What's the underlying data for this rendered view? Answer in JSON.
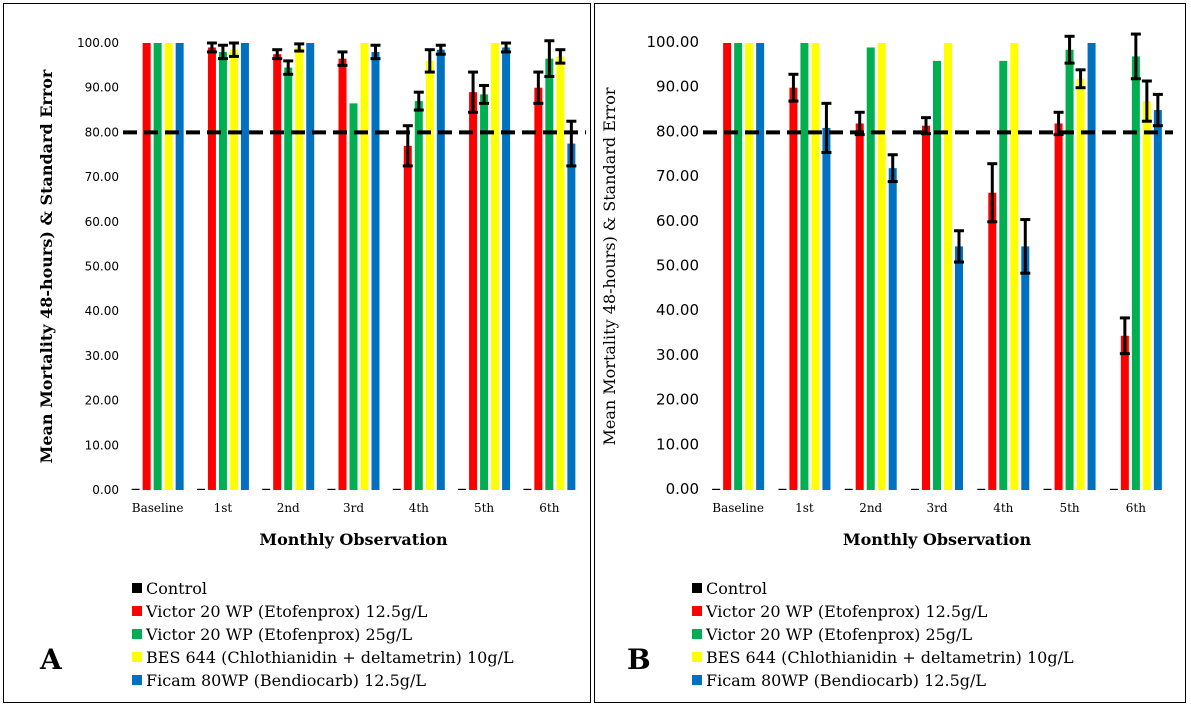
{
  "colors": {
    "control": "#000000",
    "victor_12_5": "#ff0000",
    "victor_25": "#00b050",
    "bes644": "#ffff00",
    "ficam": "#0070c0",
    "reference_line": "#000000"
  },
  "chart_data": [
    {
      "type": "bar",
      "panel_letter": "A",
      "xlabel": "Monthly Observation",
      "ylabel": "Mean Mortality 48-hours) & Standard Error",
      "ylim": [
        0,
        100
      ],
      "yticks": [
        "0.00",
        "10.00",
        "20.00",
        "30.00",
        "40.00",
        "50.00",
        "60.00",
        "70.00",
        "80.00",
        "90.00",
        "100.00"
      ],
      "categories": [
        "Baseline",
        "1st",
        "2nd",
        "3rd",
        "4th",
        "5th",
        "6th"
      ],
      "reference_line": 80,
      "legend_position": "bottom",
      "series": [
        {
          "name": "Control",
          "color_key": "control",
          "values": [
            0,
            0,
            0,
            0,
            0,
            0,
            0
          ],
          "errors": [
            0,
            0,
            0,
            0,
            0,
            0,
            0
          ]
        },
        {
          "name": "Victor 20 WP (Etofenprox) 12.5g/L",
          "color_key": "victor_12_5",
          "values": [
            100,
            99,
            97.5,
            96.5,
            77,
            89,
            90
          ],
          "errors": [
            0,
            1,
            1,
            1.5,
            4.5,
            4.5,
            3.5
          ]
        },
        {
          "name": "Victor 20 WP (Etofenprox) 25g/L",
          "color_key": "victor_25",
          "values": [
            100,
            98,
            94.5,
            86.5,
            87,
            88.5,
            96.5
          ],
          "errors": [
            0,
            1.5,
            1.5,
            0,
            2,
            2,
            4
          ]
        },
        {
          "name": "BES 644 (Chlothianidin + deltametrin) 10g/L",
          "color_key": "bes644",
          "values": [
            100,
            98.5,
            99,
            100,
            96,
            100,
            97
          ],
          "errors": [
            0,
            1.5,
            0.8,
            0,
            2.5,
            0,
            1.5
          ]
        },
        {
          "name": "Ficam 80WP (Bendiocarb) 12.5g/L",
          "color_key": "ficam",
          "values": [
            100,
            100,
            100,
            98,
            98.5,
            99,
            77.5
          ],
          "errors": [
            0,
            0,
            0,
            1.5,
            1,
            1,
            5
          ]
        }
      ]
    },
    {
      "type": "bar",
      "panel_letter": "B",
      "xlabel": "Monthly Observation",
      "ylabel": "Mean Mortality 48-hours) & Standard Error",
      "ylim": [
        0,
        100
      ],
      "yticks": [
        "0.00",
        "10.00",
        "20.00",
        "30.00",
        "40.00",
        "50.00",
        "60.00",
        "70.00",
        "80.00",
        "90.00",
        "100.00"
      ],
      "categories": [
        "Baseline",
        "1st",
        "2nd",
        "3rd",
        "4th",
        "5th",
        "6th"
      ],
      "reference_line": 80,
      "legend_position": "bottom",
      "series": [
        {
          "name": "Control",
          "color_key": "control",
          "values": [
            0,
            0,
            0,
            0,
            0,
            0,
            0
          ],
          "errors": [
            0,
            0,
            0,
            0,
            0,
            0,
            0
          ]
        },
        {
          "name": "Victor 20 WP (Etofenprox) 12.5g/L",
          "color_key": "victor_12_5",
          "values": [
            100,
            90,
            82,
            81.5,
            66.5,
            82,
            34.5
          ],
          "errors": [
            0,
            3,
            2.5,
            1.8,
            6.5,
            2.5,
            4
          ]
        },
        {
          "name": "Victor 20 WP (Etofenprox) 25g/L",
          "color_key": "victor_25",
          "values": [
            100,
            100,
            99,
            96,
            96,
            98.5,
            97
          ],
          "errors": [
            0,
            0,
            0,
            0,
            0,
            3,
            5
          ]
        },
        {
          "name": "BES 644 (Chlothianidin + deltametrin) 10g/L",
          "color_key": "bes644",
          "values": [
            100,
            100,
            100,
            100,
            100,
            92,
            87
          ],
          "errors": [
            0,
            0,
            0,
            0,
            0,
            2,
            4.5
          ]
        },
        {
          "name": "Ficam 80WP (Bendiocarb) 12.5g/L",
          "color_key": "ficam",
          "values": [
            100,
            81,
            72,
            54.5,
            54.5,
            100,
            85
          ],
          "errors": [
            0,
            5.5,
            3,
            3.5,
            6,
            0,
            3.5
          ]
        }
      ]
    }
  ]
}
